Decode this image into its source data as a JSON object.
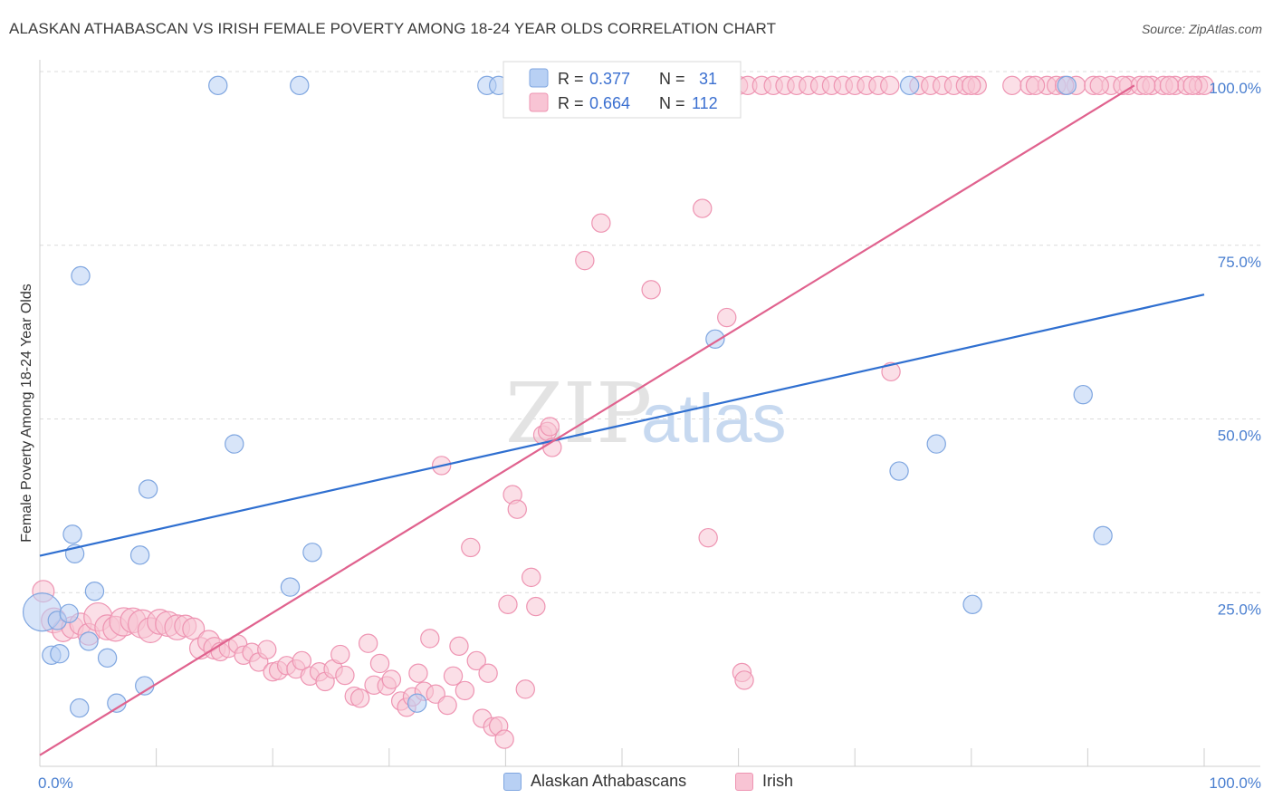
{
  "title": "ALASKAN ATHABASCAN VS IRISH FEMALE POVERTY AMONG 18-24 YEAR OLDS CORRELATION CHART",
  "source": "Source: ZipAtlas.com",
  "watermark": {
    "zip": "ZIP",
    "atlas": "atlas"
  },
  "colors": {
    "blue_fill": "#b8d0f4",
    "blue_stroke": "#7fa6e0",
    "blue_line": "#2f6fd0",
    "pink_fill": "#f8c4d4",
    "pink_stroke": "#ee94b2",
    "pink_line": "#e0628e"
  },
  "legend": {
    "rows": [
      {
        "r_label": "R =",
        "r_value": "0.377",
        "n_label": "N =",
        "n_value": "31"
      },
      {
        "r_label": "R =",
        "r_value": "0.664",
        "n_label": "N =",
        "n_value": "112"
      }
    ]
  },
  "bottom_legend": [
    "Alaskan Athabascans",
    "Irish"
  ],
  "chart_data": {
    "type": "scatter",
    "title": "ALASKAN ATHABASCAN VS IRISH FEMALE POVERTY AMONG 18-24 YEAR OLDS CORRELATION CHART",
    "xlabel": "",
    "ylabel": "Female Poverty Among 18-24 Year Olds",
    "xlim": [
      0,
      100
    ],
    "ylim": [
      0,
      100
    ],
    "x_tick_labels": [
      "0.0%",
      "100.0%"
    ],
    "y_tick_labels": [
      "100.0%",
      "75.0%",
      "50.0%",
      "25.0%"
    ],
    "y_ticks": [
      100,
      75,
      50,
      25
    ],
    "grid": true,
    "legend_position": "top-center",
    "series": [
      {
        "name": "Alaskan Athabascans",
        "r": 0.377,
        "n": 31,
        "trend": {
          "x": [
            0,
            100
          ],
          "y": [
            30.3,
            67.9
          ]
        },
        "points": [
          [
            0.2,
            22.2,
            22
          ],
          [
            1.5,
            21.0,
            10
          ],
          [
            2.5,
            22.0,
            10
          ],
          [
            1.0,
            16.0,
            10
          ],
          [
            1.7,
            16.2,
            10
          ],
          [
            3.5,
            70.6,
            10
          ],
          [
            2.8,
            33.4,
            10
          ],
          [
            3.0,
            30.6,
            10
          ],
          [
            4.7,
            25.2,
            10
          ],
          [
            4.2,
            18.0,
            10
          ],
          [
            5.8,
            15.6,
            10
          ],
          [
            3.4,
            8.4,
            10
          ],
          [
            6.6,
            9.1,
            10
          ],
          [
            8.6,
            30.4,
            10
          ],
          [
            9.0,
            11.6,
            10
          ],
          [
            9.3,
            39.9,
            10
          ],
          [
            15.3,
            98.0,
            10
          ],
          [
            16.7,
            46.4,
            10
          ],
          [
            21.5,
            25.8,
            10
          ],
          [
            22.3,
            98.0,
            10
          ],
          [
            23.4,
            30.8,
            10
          ],
          [
            32.4,
            9.1,
            10
          ],
          [
            38.4,
            98.0,
            10
          ],
          [
            39.4,
            98.0,
            10
          ],
          [
            58.0,
            61.5,
            10
          ],
          [
            73.8,
            42.5,
            10
          ],
          [
            74.7,
            98.0,
            10
          ],
          [
            77.0,
            46.4,
            10
          ],
          [
            80.1,
            23.3,
            10
          ],
          [
            88.2,
            98.0,
            10
          ],
          [
            89.6,
            53.5,
            10
          ],
          [
            91.3,
            33.2,
            10
          ]
        ]
      },
      {
        "name": "Irish",
        "r": 0.664,
        "n": 112,
        "trend": {
          "x": [
            0,
            94.0
          ],
          "y": [
            1.6,
            98.0
          ]
        },
        "points": [
          [
            0.3,
            25.2,
            12
          ],
          [
            1.2,
            21.0,
            14
          ],
          [
            2.0,
            19.5,
            12
          ],
          [
            2.8,
            20.0,
            12
          ],
          [
            3.5,
            20.5,
            12
          ],
          [
            4.2,
            19.0,
            12
          ],
          [
            5.0,
            21.5,
            16
          ],
          [
            5.8,
            20.0,
            14
          ],
          [
            6.5,
            19.8,
            14
          ],
          [
            7.2,
            20.8,
            16
          ],
          [
            8.0,
            21.0,
            14
          ],
          [
            8.8,
            20.5,
            16
          ],
          [
            9.5,
            19.6,
            14
          ],
          [
            10.3,
            20.8,
            14
          ],
          [
            11.0,
            20.5,
            14
          ],
          [
            11.8,
            20.0,
            14
          ],
          [
            12.5,
            20.2,
            12
          ],
          [
            13.2,
            19.8,
            12
          ],
          [
            13.8,
            17.0,
            12
          ],
          [
            14.5,
            18.0,
            12
          ],
          [
            15.0,
            17.0,
            12
          ],
          [
            15.5,
            16.5,
            10
          ],
          [
            16.2,
            17.0,
            10
          ],
          [
            17.0,
            17.6,
            10
          ],
          [
            17.5,
            16.0,
            10
          ],
          [
            18.2,
            16.4,
            10
          ],
          [
            18.8,
            15.0,
            10
          ],
          [
            19.5,
            16.8,
            10
          ],
          [
            20.0,
            13.6,
            10
          ],
          [
            20.5,
            13.8,
            10
          ],
          [
            21.2,
            14.5,
            10
          ],
          [
            22.0,
            14.0,
            10
          ],
          [
            22.5,
            15.2,
            10
          ],
          [
            23.2,
            13.0,
            10
          ],
          [
            24.0,
            13.6,
            10
          ],
          [
            24.5,
            12.2,
            10
          ],
          [
            25.2,
            14.0,
            10
          ],
          [
            25.8,
            16.1,
            10
          ],
          [
            26.2,
            13.1,
            10
          ],
          [
            27.0,
            10.1,
            10
          ],
          [
            27.5,
            9.8,
            10
          ],
          [
            28.2,
            17.7,
            10
          ],
          [
            28.7,
            11.7,
            10
          ],
          [
            29.2,
            14.8,
            10
          ],
          [
            29.8,
            11.6,
            10
          ],
          [
            30.2,
            12.5,
            10
          ],
          [
            31.0,
            9.4,
            10
          ],
          [
            31.5,
            8.5,
            10
          ],
          [
            32.0,
            10.0,
            10
          ],
          [
            32.5,
            13.4,
            10
          ],
          [
            33.0,
            10.8,
            10
          ],
          [
            33.5,
            18.4,
            10
          ],
          [
            34.0,
            10.4,
            10
          ],
          [
            34.5,
            43.3,
            10
          ],
          [
            35.0,
            8.8,
            10
          ],
          [
            35.5,
            13.0,
            10
          ],
          [
            36.0,
            17.3,
            10
          ],
          [
            36.5,
            10.9,
            10
          ],
          [
            37.0,
            31.5,
            10
          ],
          [
            37.5,
            15.2,
            10
          ],
          [
            38.0,
            6.9,
            10
          ],
          [
            38.5,
            13.4,
            10
          ],
          [
            38.9,
            5.7,
            10
          ],
          [
            39.4,
            5.8,
            10
          ],
          [
            39.9,
            3.9,
            10
          ],
          [
            40.2,
            23.3,
            10
          ],
          [
            40.6,
            39.1,
            10
          ],
          [
            41.0,
            37.0,
            10
          ],
          [
            41.7,
            11.1,
            10
          ],
          [
            42.2,
            27.2,
            10
          ],
          [
            42.6,
            23.0,
            10
          ],
          [
            43.2,
            47.7,
            10
          ],
          [
            43.6,
            48.2,
            10
          ],
          [
            43.8,
            48.9,
            10
          ],
          [
            44.0,
            45.9,
            10
          ],
          [
            44.8,
            98.0,
            10
          ],
          [
            45.5,
            98.0,
            10
          ],
          [
            46.2,
            98.0,
            10
          ],
          [
            46.8,
            72.8,
            10
          ],
          [
            48.2,
            78.2,
            10
          ],
          [
            49.0,
            98.0,
            10
          ],
          [
            50.0,
            98.0,
            10
          ],
          [
            51.0,
            98.0,
            10
          ],
          [
            52.0,
            98.0,
            10
          ],
          [
            52.5,
            68.6,
            10
          ],
          [
            53.0,
            98.0,
            10
          ],
          [
            54.0,
            98.0,
            10
          ],
          [
            55.0,
            98.0,
            10
          ],
          [
            56.0,
            98.0,
            10
          ],
          [
            56.9,
            80.3,
            10
          ],
          [
            57.5,
            98.0,
            10
          ],
          [
            58.5,
            98.0,
            10
          ],
          [
            59.0,
            64.6,
            10
          ],
          [
            60.0,
            98.0,
            10
          ],
          [
            60.3,
            13.5,
            10
          ],
          [
            60.5,
            12.4,
            10
          ],
          [
            57.4,
            32.9,
            10
          ],
          [
            60.8,
            98.0,
            10
          ],
          [
            62.0,
            98.0,
            10
          ],
          [
            63.0,
            98.0,
            10
          ],
          [
            64.0,
            98.0,
            10
          ],
          [
            65.0,
            98.0,
            10
          ],
          [
            66.0,
            98.0,
            10
          ],
          [
            67.0,
            98.0,
            10
          ],
          [
            68.0,
            98.0,
            10
          ],
          [
            69.0,
            98.0,
            10
          ],
          [
            70.0,
            98.0,
            10
          ],
          [
            71.0,
            98.0,
            10
          ],
          [
            72.0,
            98.0,
            10
          ],
          [
            73.0,
            98.0,
            10
          ],
          [
            73.1,
            56.8,
            10
          ],
          [
            75.5,
            98.0,
            10
          ],
          [
            76.5,
            98.0,
            10
          ],
          [
            77.5,
            98.0,
            10
          ],
          [
            78.5,
            98.0,
            10
          ],
          [
            79.5,
            98.0,
            10
          ],
          [
            80.5,
            98.0,
            10
          ],
          [
            83.5,
            98.0,
            10
          ],
          [
            85.0,
            98.0,
            10
          ],
          [
            86.5,
            98.0,
            10
          ],
          [
            87.3,
            98.0,
            10
          ],
          [
            89.0,
            98.0,
            10
          ],
          [
            90.5,
            98.0,
            10
          ],
          [
            92.0,
            98.0,
            10
          ],
          [
            93.5,
            98.0,
            10
          ],
          [
            94.5,
            98.0,
            10
          ],
          [
            95.5,
            98.0,
            10
          ],
          [
            96.5,
            98.0,
            10
          ],
          [
            97.5,
            98.0,
            10
          ],
          [
            98.5,
            98.0,
            10
          ],
          [
            99.5,
            98.0,
            10
          ],
          [
            100.0,
            98.0,
            10
          ],
          [
            80.0,
            98.0,
            10
          ],
          [
            85.5,
            98.0,
            10
          ],
          [
            88.0,
            98.0,
            10
          ],
          [
            91.0,
            98.0,
            10
          ],
          [
            93.0,
            98.0,
            10
          ],
          [
            95.0,
            98.0,
            10
          ],
          [
            97.0,
            98.0,
            10
          ],
          [
            99.0,
            98.0,
            10
          ]
        ]
      }
    ]
  }
}
